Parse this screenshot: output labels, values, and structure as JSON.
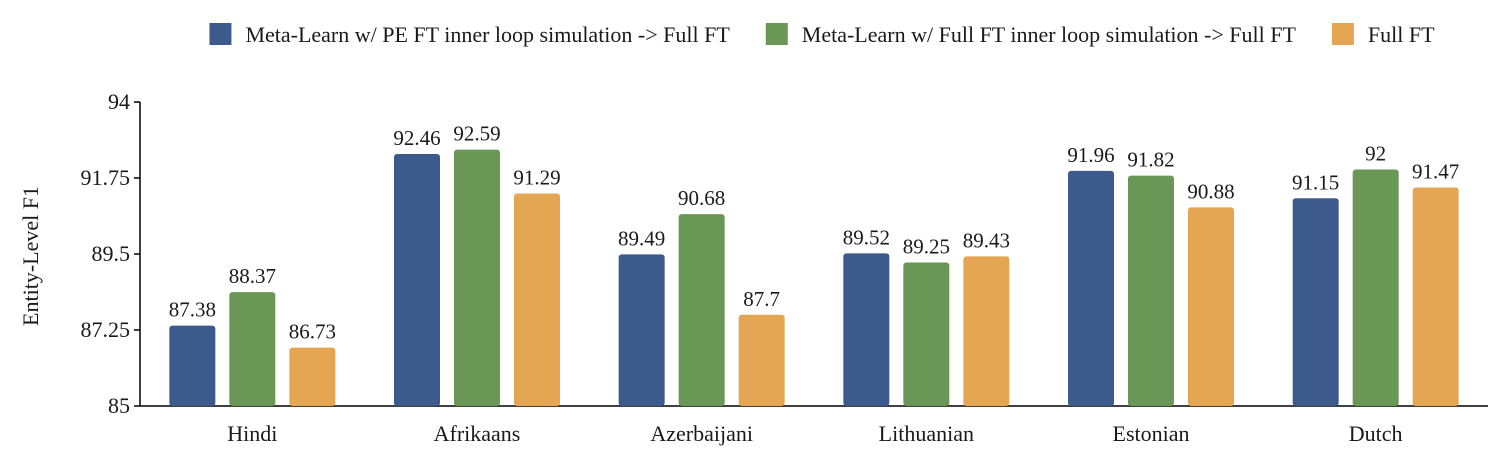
{
  "chart_data": {
    "type": "bar",
    "title": "",
    "xlabel": "",
    "ylabel": "Entity-Level F1",
    "ylim": [
      85,
      94
    ],
    "yticks": [
      "85",
      "87.25",
      "89.5",
      "91.75",
      "94"
    ],
    "ytick_values": [
      85,
      87.25,
      89.5,
      91.75,
      94
    ],
    "grid": false,
    "legend_position": "top",
    "categories": [
      "Hindi",
      "Afrikaans",
      "Azerbaijani",
      "Lithuanian",
      "Estonian",
      "Dutch"
    ],
    "series": [
      {
        "name": "Meta-Learn w/ PE FT inner loop simulation -> Full FT",
        "color": "#3d5a8c",
        "values": [
          87.38,
          92.46,
          89.49,
          89.52,
          91.96,
          91.15
        ],
        "labels": [
          "87.38",
          "92.46",
          "89.49",
          "89.52",
          "91.96",
          "91.15"
        ]
      },
      {
        "name": "Meta-Learn w/ Full FT inner loop simulation -> Full FT",
        "color": "#6a9656",
        "values": [
          88.37,
          92.59,
          90.68,
          89.25,
          91.82,
          92
        ],
        "labels": [
          "88.37",
          "92.59",
          "90.68",
          "89.25",
          "91.82",
          "92"
        ]
      },
      {
        "name": "Full FT",
        "color": "#e4a653",
        "values": [
          86.73,
          91.29,
          87.7,
          89.43,
          90.88,
          91.47
        ],
        "labels": [
          "86.73",
          "91.29",
          "87.7",
          "89.43",
          "90.88",
          "91.47"
        ]
      }
    ]
  }
}
